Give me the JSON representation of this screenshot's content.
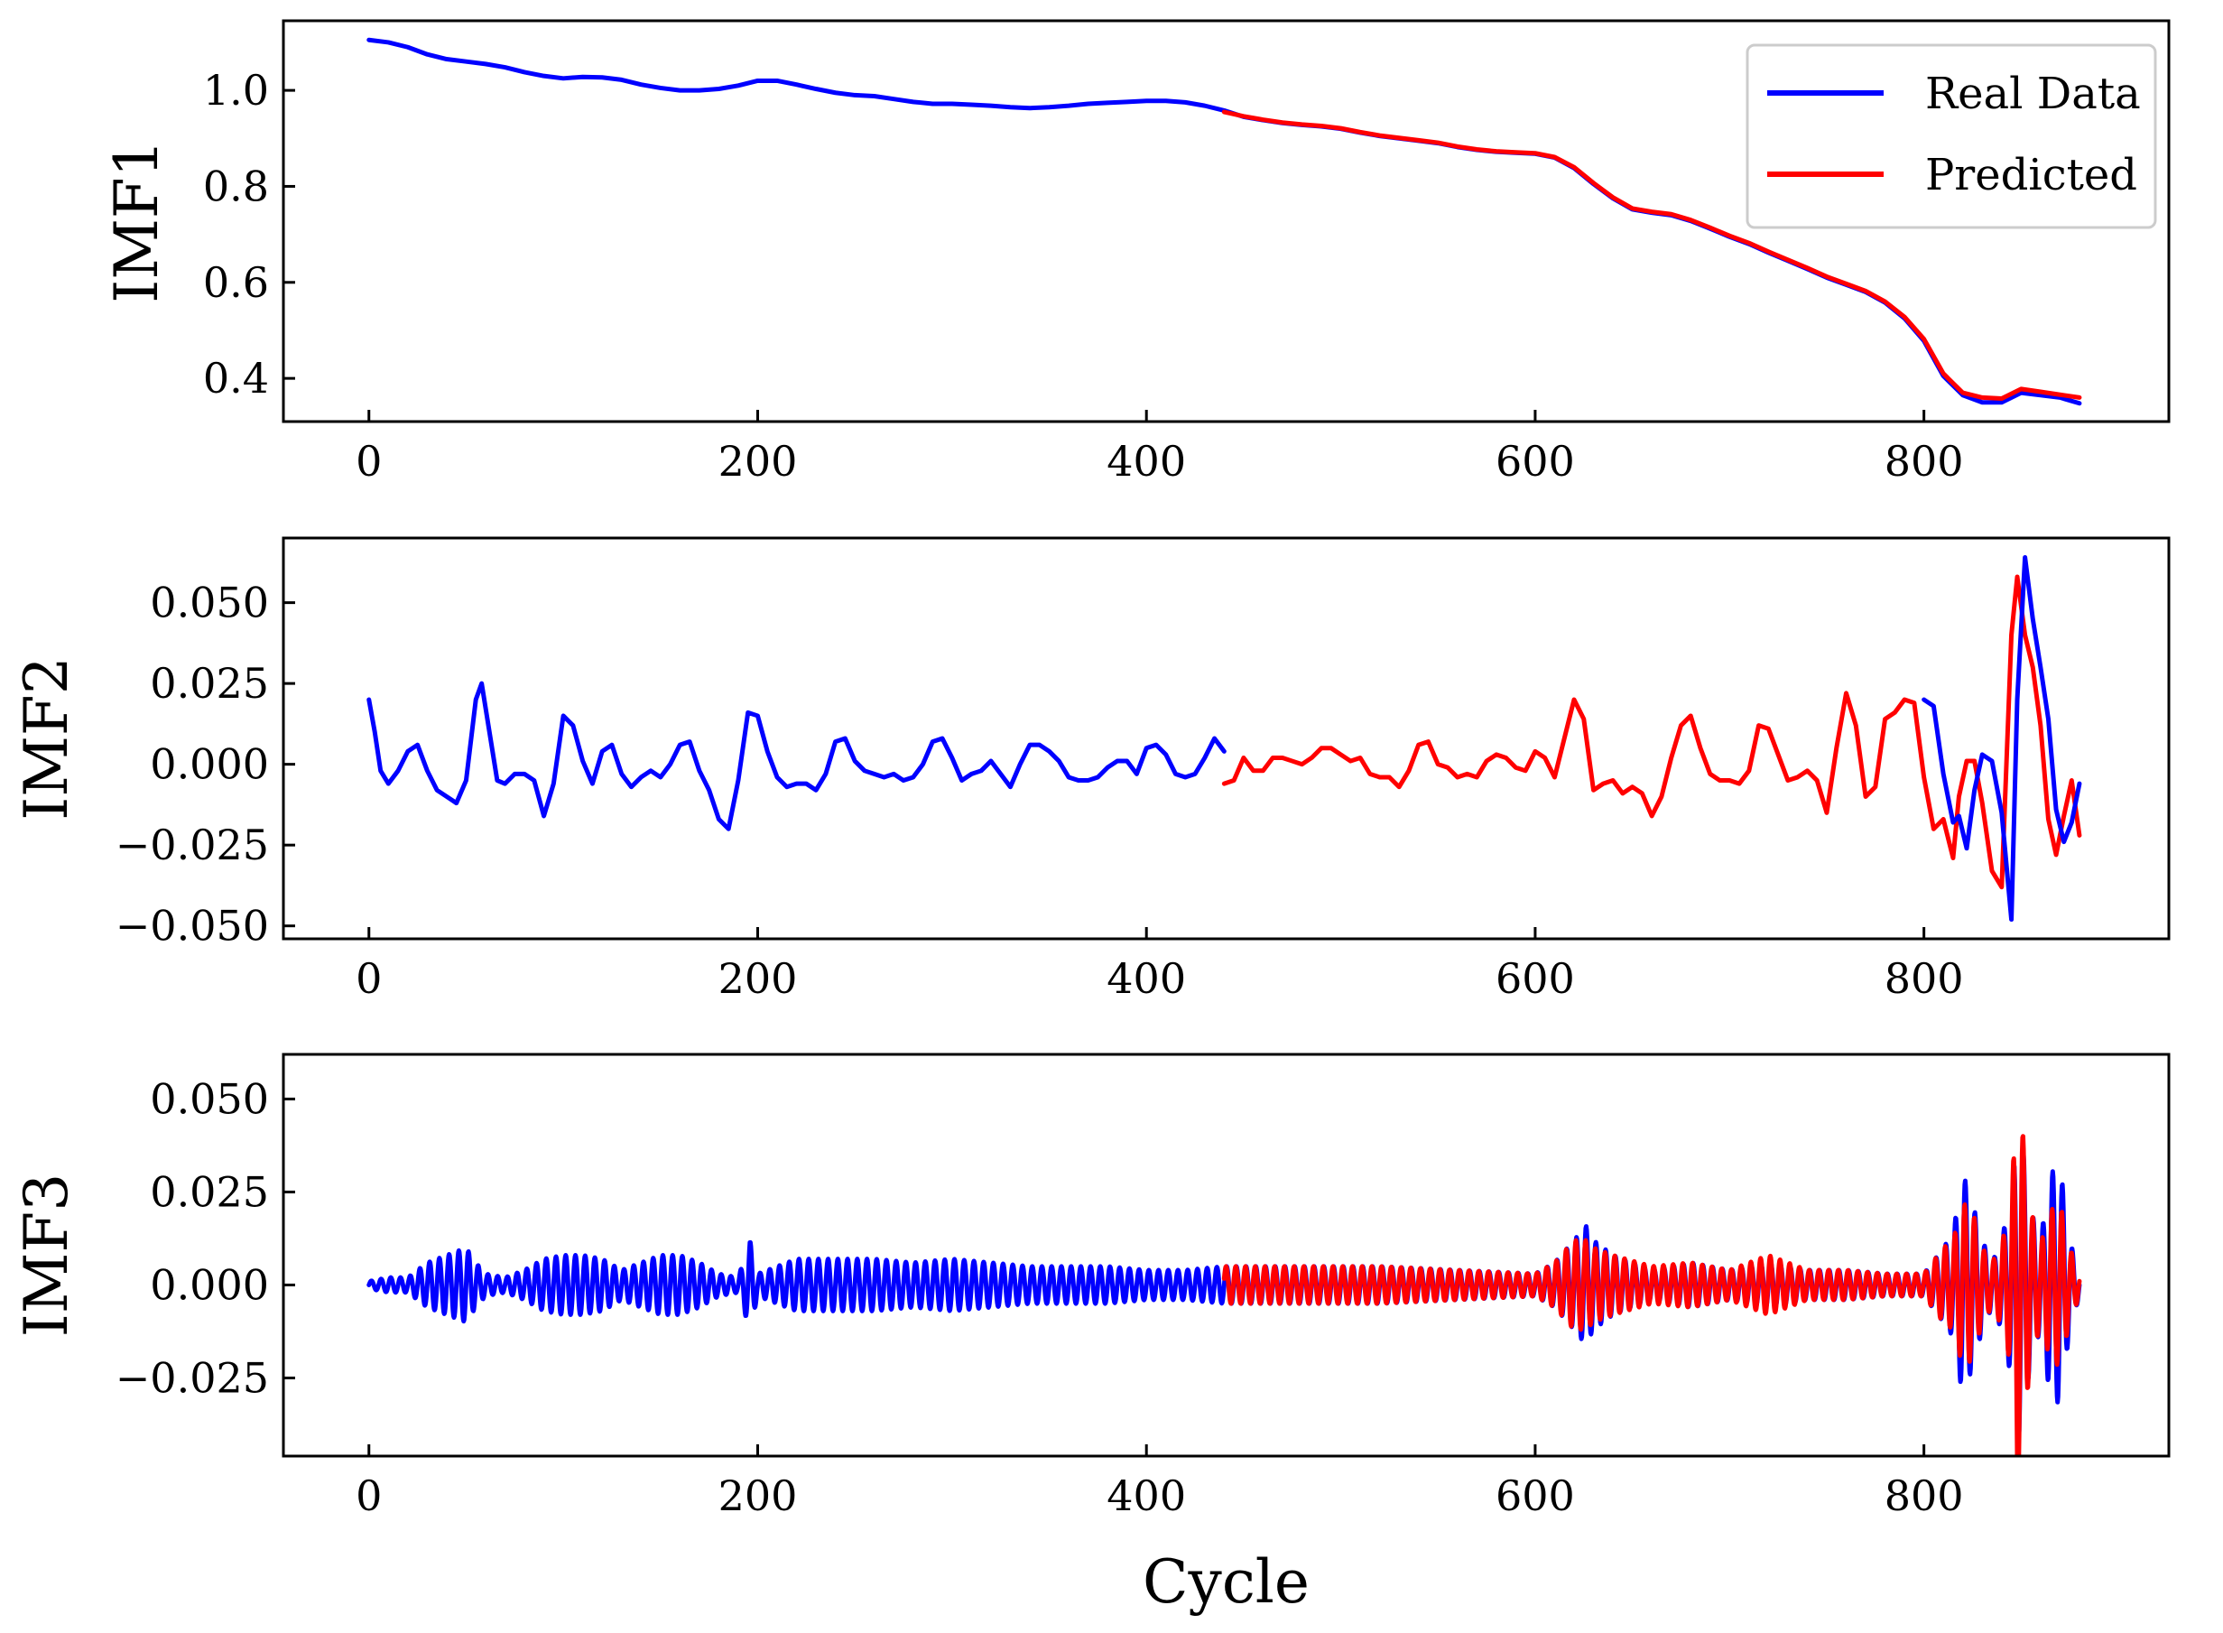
{
  "colors": {
    "real": "#0000ff",
    "predicted": "#ff0000",
    "axis": "#000000",
    "legend_frame": "#cccccc"
  },
  "legend": {
    "real_label": "Real Data",
    "predicted_label": "Predicted",
    "placement": "top-right of first panel"
  },
  "xlabel": "Cycle",
  "chart_data": [
    {
      "type": "line",
      "ylabel": "IMF1",
      "xlim": [
        -44,
        926
      ],
      "ylim": [
        0.31,
        1.145
      ],
      "x_ticks": [
        0,
        200,
        400,
        600,
        800
      ],
      "x_tick_labels": [
        "0",
        "200",
        "400",
        "600",
        "800"
      ],
      "y_ticks": [
        0.4,
        0.6,
        0.8,
        1.0
      ],
      "y_tick_labels": [
        "0.4",
        "0.6",
        "0.8",
        "1.0"
      ],
      "series": [
        {
          "name": "Real Data",
          "color": "#0000ff",
          "x": [
            0,
            10,
            20,
            30,
            40,
            50,
            60,
            70,
            80,
            90,
            100,
            110,
            120,
            130,
            140,
            150,
            160,
            170,
            180,
            190,
            200,
            210,
            220,
            230,
            240,
            250,
            260,
            270,
            280,
            290,
            300,
            310,
            320,
            330,
            340,
            350,
            360,
            370,
            380,
            390,
            400,
            410,
            420,
            430,
            440,
            450,
            460,
            470,
            480,
            490,
            500,
            510,
            520,
            530,
            540,
            550,
            560,
            570,
            580,
            590,
            600,
            610,
            620,
            630,
            640,
            650,
            660,
            670,
            680,
            690,
            700,
            710,
            720,
            730,
            740,
            750,
            760,
            770,
            780,
            790,
            800,
            810,
            820,
            830,
            840,
            850,
            860,
            870,
            880
          ],
          "y": [
            1.105,
            1.1,
            1.09,
            1.075,
            1.065,
            1.06,
            1.055,
            1.048,
            1.038,
            1.03,
            1.025,
            1.028,
            1.027,
            1.022,
            1.012,
            1.005,
            1.0,
            1.0,
            1.003,
            1.01,
            1.02,
            1.02,
            1.012,
            1.003,
            0.995,
            0.99,
            0.988,
            0.982,
            0.976,
            0.972,
            0.972,
            0.97,
            0.968,
            0.965,
            0.963,
            0.965,
            0.968,
            0.972,
            0.974,
            0.976,
            0.978,
            0.978,
            0.975,
            0.968,
            0.958,
            0.945,
            0.938,
            0.932,
            0.928,
            0.925,
            0.92,
            0.912,
            0.905,
            0.9,
            0.895,
            0.89,
            0.882,
            0.876,
            0.872,
            0.87,
            0.868,
            0.86,
            0.838,
            0.805,
            0.775,
            0.752,
            0.745,
            0.74,
            0.728,
            0.712,
            0.695,
            0.68,
            0.662,
            0.645,
            0.628,
            0.61,
            0.595,
            0.58,
            0.558,
            0.525,
            0.478,
            0.405,
            0.365,
            0.35,
            0.35,
            0.37,
            0.365,
            0.36,
            0.348
          ]
        },
        {
          "name": "Predicted",
          "color": "#ff0000",
          "x": [
            440,
            450,
            460,
            470,
            480,
            490,
            500,
            510,
            520,
            530,
            540,
            550,
            560,
            570,
            580,
            590,
            600,
            610,
            620,
            630,
            640,
            650,
            660,
            670,
            680,
            690,
            700,
            710,
            720,
            730,
            740,
            750,
            760,
            770,
            780,
            790,
            800,
            810,
            820,
            830,
            840,
            850,
            860,
            870,
            880
          ],
          "y": [
            0.955,
            0.946,
            0.939,
            0.933,
            0.929,
            0.926,
            0.921,
            0.913,
            0.906,
            0.901,
            0.896,
            0.891,
            0.883,
            0.877,
            0.873,
            0.871,
            0.869,
            0.861,
            0.84,
            0.807,
            0.777,
            0.754,
            0.747,
            0.742,
            0.73,
            0.714,
            0.697,
            0.682,
            0.664,
            0.647,
            0.63,
            0.612,
            0.597,
            0.582,
            0.56,
            0.528,
            0.482,
            0.41,
            0.37,
            0.36,
            0.358,
            0.378,
            0.372,
            0.366,
            0.36
          ]
        }
      ]
    },
    {
      "type": "line",
      "ylabel": "IMF2",
      "xlim": [
        -44,
        926
      ],
      "ylim": [
        -0.054,
        0.07
      ],
      "x_ticks": [
        0,
        200,
        400,
        600,
        800
      ],
      "x_tick_labels": [
        "0",
        "200",
        "400",
        "600",
        "800"
      ],
      "y_ticks": [
        -0.05,
        -0.025,
        0.0,
        0.025,
        0.05
      ],
      "y_tick_labels": [
        "−0.050",
        "−0.025",
        "0.000",
        "0.025",
        "0.050"
      ],
      "series": [
        {
          "name": "Real Data",
          "color": "#0000ff",
          "x": [
            0,
            3,
            6,
            10,
            15,
            20,
            25,
            30,
            35,
            40,
            45,
            50,
            55,
            58,
            62,
            66,
            70,
            75,
            80,
            85,
            90,
            95,
            100,
            105,
            110,
            115,
            120,
            125,
            130,
            135,
            140,
            145,
            150,
            155,
            160,
            165,
            170,
            175,
            180,
            185,
            190,
            195,
            200,
            205,
            210,
            215,
            220,
            225,
            230,
            235,
            240,
            245,
            250,
            255,
            260,
            265,
            270,
            275,
            280,
            285,
            290,
            295,
            300,
            305,
            310,
            315,
            320,
            325,
            330,
            335,
            340,
            345,
            350,
            355,
            360,
            365,
            370,
            375,
            380,
            385,
            390,
            395,
            400,
            405,
            410,
            415,
            420,
            425,
            430,
            435,
            440
          ],
          "y": [
            0.02,
            0.01,
            -0.002,
            -0.006,
            -0.002,
            0.004,
            0.006,
            -0.002,
            -0.008,
            -0.01,
            -0.012,
            -0.005,
            0.02,
            0.025,
            0.01,
            -0.005,
            -0.006,
            -0.003,
            -0.003,
            -0.005,
            -0.016,
            -0.006,
            0.015,
            0.012,
            0.001,
            -0.006,
            0.004,
            0.006,
            -0.003,
            -0.007,
            -0.004,
            -0.002,
            -0.004,
            0.0,
            0.006,
            0.007,
            -0.002,
            -0.008,
            -0.017,
            -0.02,
            -0.005,
            0.016,
            0.015,
            0.004,
            -0.004,
            -0.007,
            -0.006,
            -0.006,
            -0.008,
            -0.003,
            0.007,
            0.008,
            0.001,
            -0.002,
            -0.003,
            -0.004,
            -0.003,
            -0.005,
            -0.004,
            0.0,
            0.007,
            0.008,
            0.002,
            -0.005,
            -0.003,
            -0.002,
            0.001,
            -0.003,
            -0.007,
            0.0,
            0.006,
            0.006,
            0.004,
            0.001,
            -0.004,
            -0.005,
            -0.005,
            -0.004,
            -0.001,
            0.001,
            0.001,
            -0.003,
            0.005,
            0.006,
            0.003,
            -0.003,
            -0.004,
            -0.003,
            0.002,
            0.008,
            0.004
          ]
        },
        {
          "name": "Predicted",
          "color": "#ff0000",
          "x": [
            440,
            445,
            450,
            455,
            460,
            465,
            470,
            475,
            480,
            485,
            490,
            495,
            500,
            505,
            510,
            515,
            520,
            525,
            530,
            535,
            540,
            545,
            550,
            555,
            560,
            565,
            570,
            575,
            580,
            585,
            590,
            595,
            600,
            605,
            610,
            615,
            620,
            625,
            630,
            635,
            640,
            645,
            650,
            655,
            660,
            665,
            670,
            675,
            680,
            685,
            690,
            695,
            700,
            705,
            710,
            715,
            720,
            725,
            730,
            735,
            740,
            745,
            750,
            755,
            760,
            765,
            770,
            775,
            780,
            785,
            790,
            795,
            800,
            805,
            810,
            815,
            818,
            822,
            826,
            830,
            835,
            840,
            845,
            848,
            852,
            856,
            860,
            864,
            868,
            872,
            876,
            880
          ],
          "y": [
            -0.006,
            -0.005,
            0.002,
            -0.002,
            -0.002,
            0.002,
            0.002,
            0.001,
            0.0,
            0.002,
            0.005,
            0.005,
            0.003,
            0.001,
            0.002,
            -0.003,
            -0.004,
            -0.004,
            -0.007,
            -0.002,
            0.006,
            0.007,
            0.0,
            -0.001,
            -0.004,
            -0.003,
            -0.004,
            0.001,
            0.003,
            0.002,
            -0.001,
            -0.002,
            0.004,
            0.002,
            -0.004,
            0.008,
            0.02,
            0.014,
            -0.008,
            -0.006,
            -0.005,
            -0.009,
            -0.007,
            -0.009,
            -0.016,
            -0.01,
            0.002,
            0.012,
            0.015,
            0.005,
            -0.003,
            -0.005,
            -0.005,
            -0.006,
            -0.002,
            0.012,
            0.011,
            0.003,
            -0.005,
            -0.004,
            -0.002,
            -0.005,
            -0.015,
            0.005,
            0.022,
            0.012,
            -0.01,
            -0.007,
            0.014,
            0.016,
            0.02,
            0.019,
            -0.004,
            -0.02,
            -0.017,
            -0.029,
            -0.01,
            0.001,
            0.001,
            -0.012,
            -0.033,
            -0.038,
            0.04,
            0.058,
            0.04,
            0.03,
            0.012,
            -0.017,
            -0.028,
            -0.016,
            -0.005,
            -0.022
          ]
        },
        {
          "name": "Real Data (overlap)",
          "color": "#0000ff",
          "x": [
            800,
            805,
            810,
            815,
            818,
            822,
            826,
            830,
            835,
            840,
            845,
            848,
            852,
            856,
            860,
            864,
            868,
            872,
            876,
            880
          ],
          "y": [
            0.02,
            0.018,
            -0.003,
            -0.018,
            -0.016,
            -0.026,
            -0.008,
            0.003,
            0.001,
            -0.015,
            -0.048,
            0.02,
            0.064,
            0.045,
            0.03,
            0.014,
            -0.014,
            -0.024,
            -0.018,
            -0.006
          ]
        }
      ]
    },
    {
      "type": "line",
      "ylabel": "IMF3",
      "xlim": [
        -44,
        926
      ],
      "ylim": [
        -0.046,
        0.062
      ],
      "x_ticks": [
        0,
        200,
        400,
        600,
        800
      ],
      "x_tick_labels": [
        "0",
        "200",
        "400",
        "600",
        "800"
      ],
      "y_ticks": [
        -0.025,
        0.0,
        0.025,
        0.05
      ],
      "y_tick_labels": [
        "−0.025",
        "0.000",
        "0.025",
        "0.050"
      ],
      "oscillation_period_cycles": 5,
      "real_envelope": {
        "x": [
          0,
          10,
          20,
          30,
          40,
          50,
          55,
          60,
          70,
          80,
          90,
          100,
          110,
          120,
          130,
          140,
          150,
          160,
          170,
          180,
          190,
          196,
          200,
          220,
          240,
          260,
          280,
          300,
          320,
          340,
          360,
          380,
          400,
          420,
          440,
          480,
          520,
          560,
          600,
          610,
          620,
          626,
          630,
          640,
          660,
          680,
          700,
          720,
          740,
          760,
          780,
          800,
          810,
          815,
          820,
          825,
          830,
          835,
          840,
          845,
          848,
          850,
          855,
          860,
          865,
          870,
          875,
          880
        ],
        "y": [
          0.001,
          0.002,
          0.002,
          0.006,
          0.008,
          0.01,
          0.006,
          0.003,
          0.002,
          0.004,
          0.007,
          0.008,
          0.008,
          0.007,
          0.004,
          0.006,
          0.008,
          0.008,
          0.006,
          0.003,
          0.002,
          0.012,
          0.003,
          0.007,
          0.007,
          0.007,
          0.006,
          0.007,
          0.006,
          0.005,
          0.005,
          0.005,
          0.004,
          0.004,
          0.005,
          0.005,
          0.005,
          0.004,
          0.003,
          0.006,
          0.012,
          0.016,
          0.012,
          0.008,
          0.004,
          0.006,
          0.004,
          0.006,
          0.004,
          0.004,
          0.003,
          0.003,
          0.01,
          0.014,
          0.03,
          0.022,
          0.012,
          0.006,
          0.012,
          0.025,
          0.042,
          0.04,
          0.02,
          0.012,
          0.03,
          0.032,
          0.012,
          0.003
        ]
      },
      "predicted_envelope": {
        "x": [
          440,
          480,
          520,
          560,
          600,
          610,
          620,
          626,
          630,
          640,
          660,
          680,
          700,
          720,
          740,
          760,
          780,
          800,
          810,
          815,
          820,
          825,
          830,
          835,
          840,
          845,
          848,
          850,
          855,
          860,
          865,
          870,
          875,
          880
        ],
        "y": [
          0.005,
          0.005,
          0.005,
          0.004,
          0.003,
          0.006,
          0.012,
          0.012,
          0.01,
          0.008,
          0.005,
          0.006,
          0.004,
          0.008,
          0.004,
          0.004,
          0.003,
          0.003,
          0.01,
          0.012,
          0.022,
          0.02,
          0.01,
          0.006,
          0.011,
          0.022,
          0.056,
          0.045,
          0.02,
          0.011,
          0.02,
          0.022,
          0.01,
          0.003
        ]
      }
    }
  ]
}
